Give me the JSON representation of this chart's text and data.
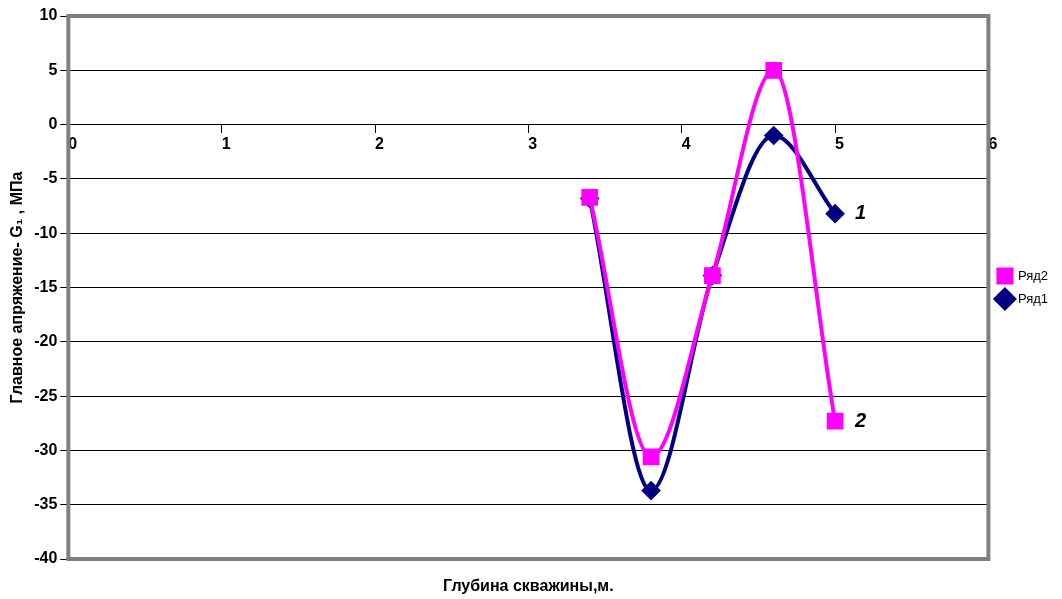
{
  "chart_data": {
    "type": "line",
    "xlabel": "Глубина скважины,м.",
    "ylabel": "Главное апряжение- G₁ , МПа",
    "x": [
      3.4,
      3.8,
      4.2,
      4.6,
      5.0
    ],
    "series": [
      {
        "name": "Ряд1",
        "color": "#000080",
        "marker": "diamond",
        "values": [
          -6.8,
          -33.7,
          -13.9,
          -1.0,
          -8.2
        ]
      },
      {
        "name": "Ряд2",
        "color": "#ff00ff",
        "marker": "square",
        "values": [
          -6.7,
          -30.6,
          -13.9,
          5.0,
          -27.3
        ]
      }
    ],
    "xlim": [
      0,
      6
    ],
    "xticks": [
      0,
      1,
      2,
      3,
      4,
      5,
      6
    ],
    "ylim": [
      -40,
      10
    ],
    "yticks": [
      -40,
      -35,
      -30,
      -25,
      -20,
      -15,
      -10,
      -5,
      0,
      5,
      10
    ],
    "grid": "y",
    "legend": "right",
    "annotations": [
      {
        "text": "1",
        "x": 5.0,
        "y": -8.2
      },
      {
        "text": "2",
        "x": 5.0,
        "y": -27.3
      }
    ]
  }
}
